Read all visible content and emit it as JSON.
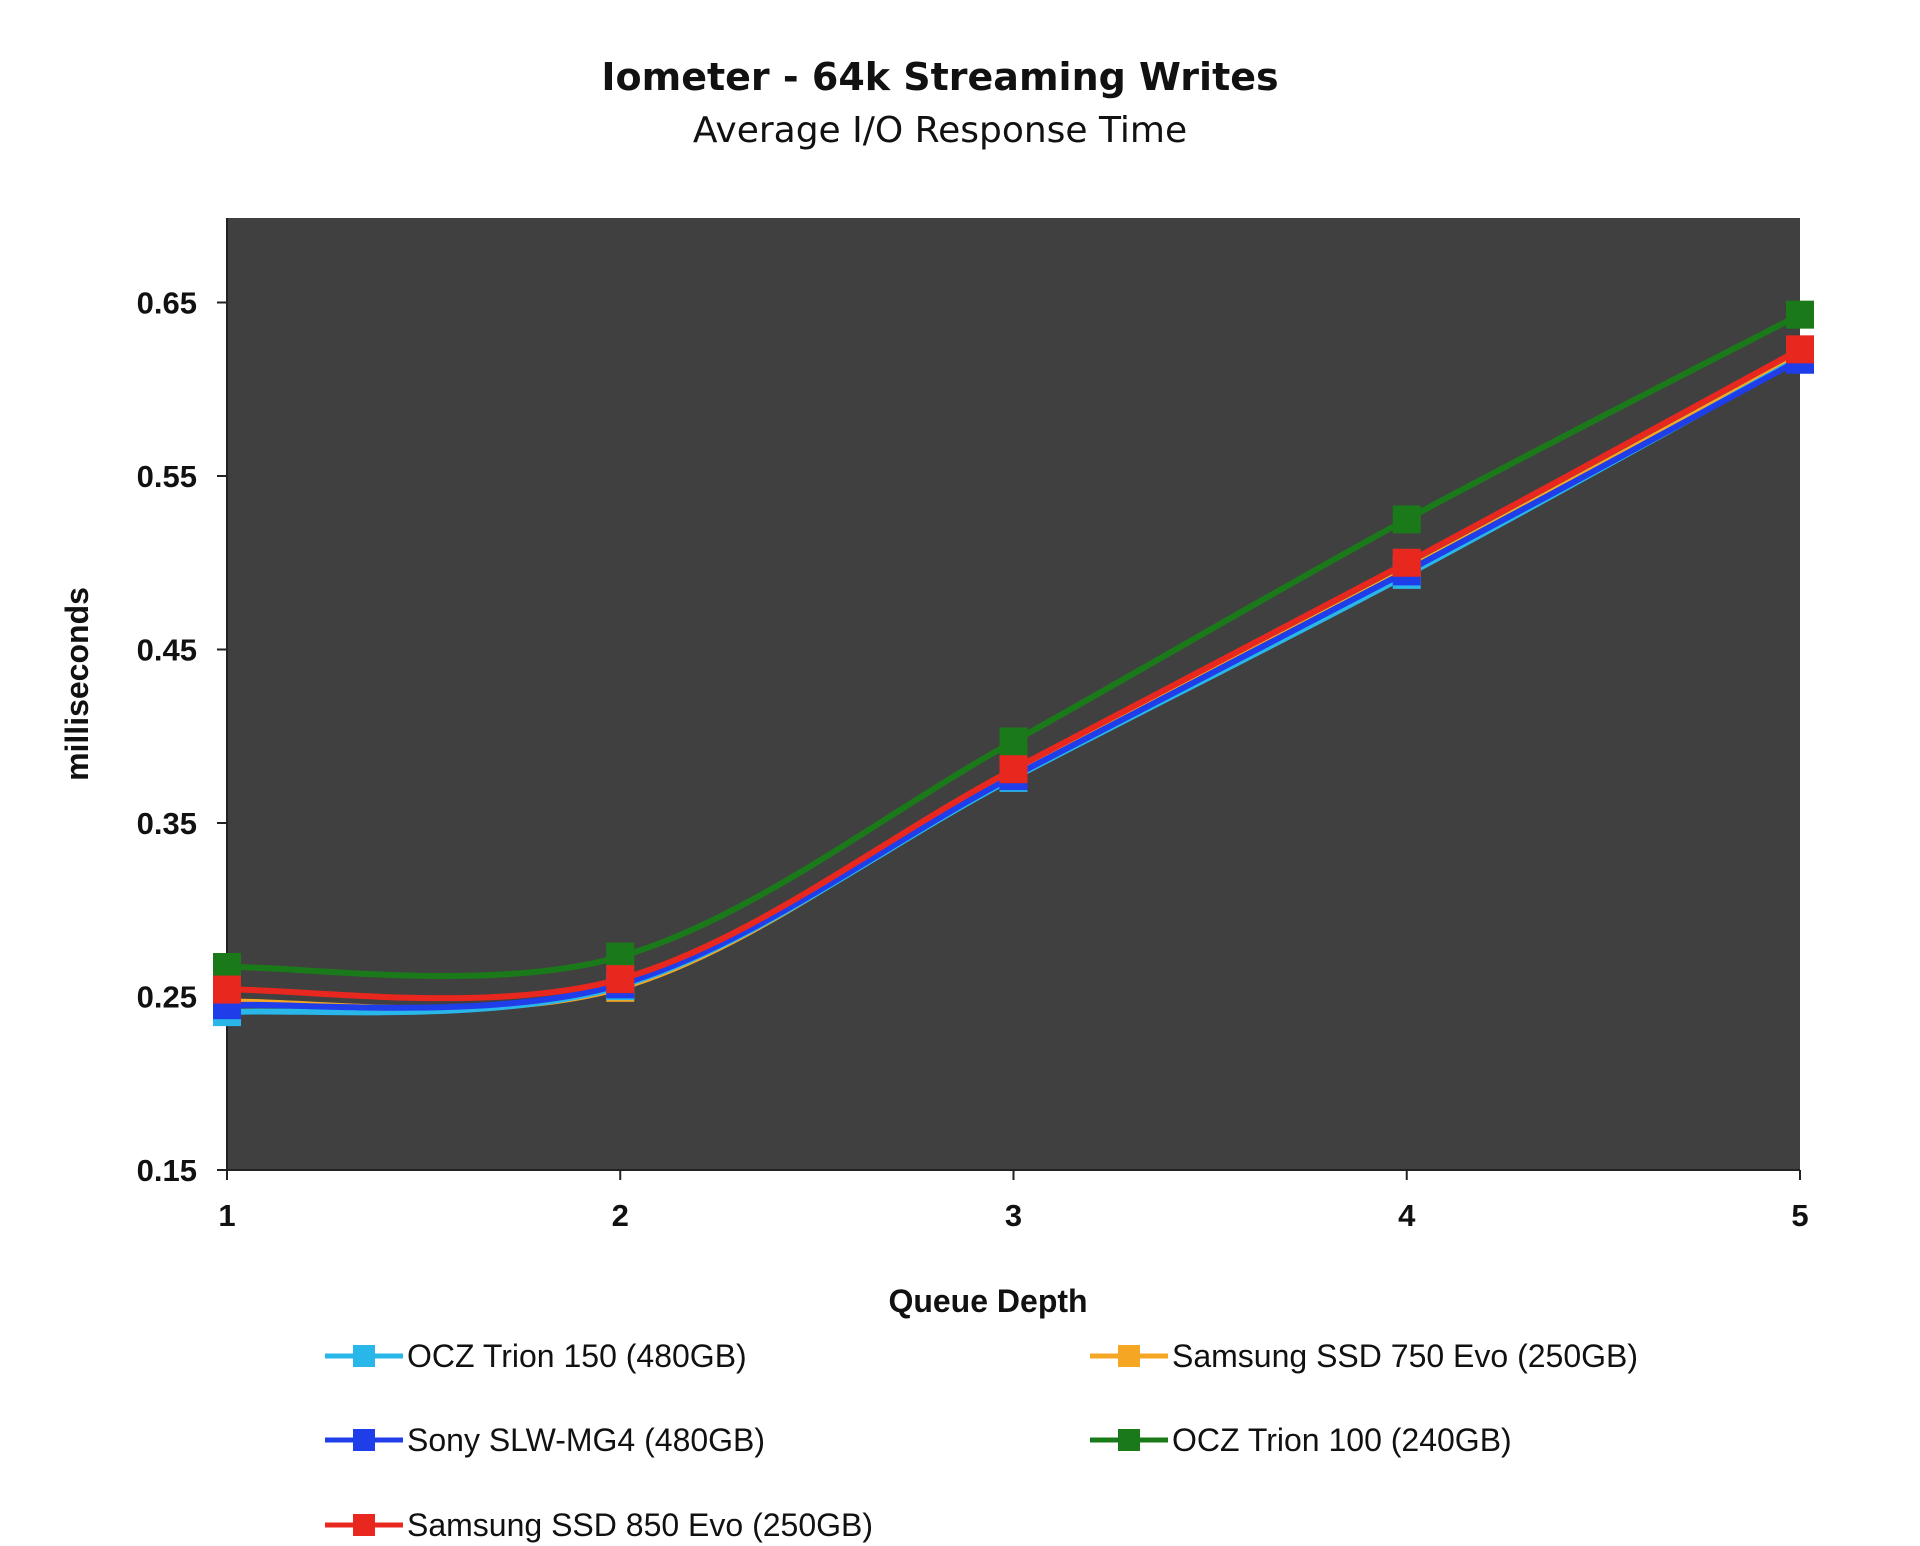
{
  "chart_data": {
    "type": "line",
    "title": "Iometer - 64k Streaming Writes",
    "subtitle": "Average I/O Response Time",
    "xlabel": "Queue Depth",
    "ylabel": "milliseconds",
    "x": [
      1,
      2,
      3,
      4,
      5
    ],
    "xlim": [
      1,
      5
    ],
    "ylim": [
      0.15,
      0.7
    ],
    "yticks": [
      "0.15",
      "0.25",
      "0.35",
      "0.45",
      "0.55",
      "0.65"
    ],
    "xticks": [
      "1",
      "2",
      "3",
      "4",
      "5"
    ],
    "plot_background": "#404040",
    "grid": false,
    "legend_position": "bottom",
    "series": [
      {
        "name": "OCZ Trion 150 (480GB)",
        "color": "#29b6e8",
        "values": [
          0.241,
          0.256,
          0.376,
          0.493,
          0.618
        ]
      },
      {
        "name": "Samsung SSD 750 Evo (250GB)",
        "color": "#f5a623",
        "values": [
          0.247,
          0.255,
          0.378,
          0.496,
          0.619
        ]
      },
      {
        "name": "Sony SLW-MG4 (480GB)",
        "color": "#1f3de8",
        "values": [
          0.245,
          0.257,
          0.377,
          0.495,
          0.617
        ]
      },
      {
        "name": "OCZ Trion 100 (240GB)",
        "color": "#1a7a1a",
        "values": [
          0.267,
          0.273,
          0.397,
          0.525,
          0.643
        ]
      },
      {
        "name": "Samsung SSD 850 Evo (250GB)",
        "color": "#e8281e",
        "values": [
          0.254,
          0.26,
          0.381,
          0.5,
          0.623
        ]
      }
    ]
  }
}
